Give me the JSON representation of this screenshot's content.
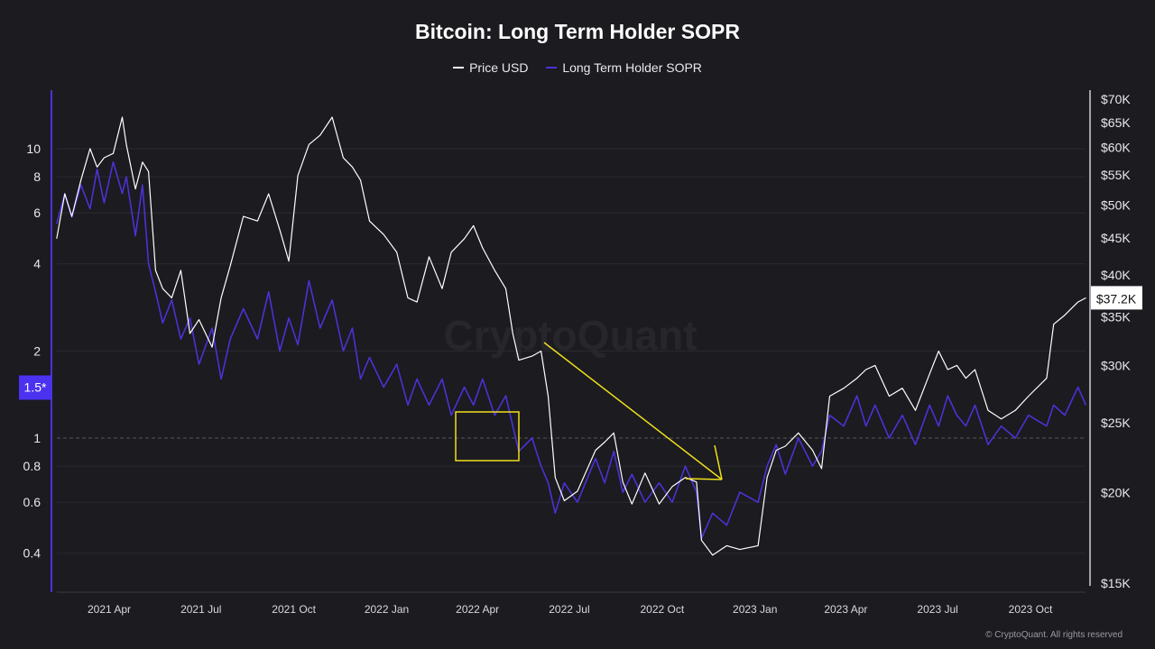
{
  "chart_data": {
    "type": "line",
    "title": "Bitcoin: Long Term Holder SOPR",
    "legend_position": "top",
    "grid": true,
    "x_ticks": [
      "2021 Apr",
      "2021 Jul",
      "2021 Oct",
      "2022 Jan",
      "2022 Apr",
      "2022 Jul",
      "2022 Oct",
      "2023 Jan",
      "2023 Apr",
      "2023 Jul",
      "2023 Oct"
    ],
    "x_tick_dates": [
      "2021-04-01",
      "2021-07-01",
      "2021-10-01",
      "2022-01-01",
      "2022-04-01",
      "2022-07-01",
      "2022-10-01",
      "2023-01-01",
      "2023-04-01",
      "2023-07-01",
      "2023-10-01"
    ],
    "left_axis": {
      "scale": "log",
      "ticks": [
        "10",
        "8",
        "6",
        "4",
        "2",
        "1",
        "0.8",
        "0.6",
        "0.4"
      ],
      "tick_values": [
        10,
        8,
        6,
        4,
        2,
        1,
        0.8,
        0.6,
        0.4
      ],
      "marker_label": "1.5*",
      "marker_value": 1.5,
      "reference_line": 1,
      "range": [
        0.33,
        14
      ]
    },
    "right_axis": {
      "scale": "log",
      "ticks": [
        "$70K",
        "$65K",
        "$60K",
        "$55K",
        "$50K",
        "$45K",
        "$40K",
        "$35K",
        "$30K",
        "$25K",
        "$20K",
        "$15K"
      ],
      "tick_values": [
        70,
        65,
        60,
        55,
        50,
        45,
        40,
        35,
        30,
        25,
        20,
        15
      ],
      "unit": "thousand USD",
      "range": [
        15,
        70
      ],
      "last_value_label": "$37.2K"
    },
    "series": [
      {
        "name": "Price USD",
        "color": "#ffffff",
        "axis": "right",
        "points": [
          [
            "2021-02-08",
            44.9
          ],
          [
            "2021-02-16",
            51.8
          ],
          [
            "2021-02-23",
            48.2
          ],
          [
            "2021-03-04",
            54.1
          ],
          [
            "2021-03-13",
            59.8
          ],
          [
            "2021-03-20",
            56.4
          ],
          [
            "2021-03-27",
            58.1
          ],
          [
            "2021-04-05",
            58.9
          ],
          [
            "2021-04-14",
            66.1
          ],
          [
            "2021-04-18",
            60.6
          ],
          [
            "2021-04-27",
            52.6
          ],
          [
            "2021-05-04",
            57.3
          ],
          [
            "2021-05-10",
            55.6
          ],
          [
            "2021-05-17",
            40.6
          ],
          [
            "2021-05-24",
            38.3
          ],
          [
            "2021-06-02",
            37.2
          ],
          [
            "2021-06-11",
            40.6
          ],
          [
            "2021-06-20",
            33.2
          ],
          [
            "2021-06-29",
            34.7
          ],
          [
            "2021-07-12",
            31.8
          ],
          [
            "2021-07-21",
            37.2
          ],
          [
            "2021-07-30",
            41.2
          ],
          [
            "2021-08-12",
            48.2
          ],
          [
            "2021-08-26",
            47.5
          ],
          [
            "2021-09-06",
            51.8
          ],
          [
            "2021-09-17",
            46.2
          ],
          [
            "2021-09-26",
            41.8
          ],
          [
            "2021-10-05",
            54.9
          ],
          [
            "2021-10-16",
            60.6
          ],
          [
            "2021-10-27",
            62.4
          ],
          [
            "2021-11-08",
            66.1
          ],
          [
            "2021-11-19",
            58.1
          ],
          [
            "2021-11-28",
            56.4
          ],
          [
            "2021-12-06",
            54.1
          ],
          [
            "2021-12-15",
            47.5
          ],
          [
            "2021-12-29",
            45.5
          ],
          [
            "2022-01-11",
            43.0
          ],
          [
            "2022-01-22",
            37.2
          ],
          [
            "2022-01-31",
            36.7
          ],
          [
            "2022-02-12",
            42.4
          ],
          [
            "2022-02-25",
            38.3
          ],
          [
            "2022-03-06",
            43.0
          ],
          [
            "2022-03-19",
            44.9
          ],
          [
            "2022-03-28",
            46.8
          ],
          [
            "2022-04-06",
            43.6
          ],
          [
            "2022-04-18",
            40.6
          ],
          [
            "2022-04-29",
            38.3
          ],
          [
            "2022-05-06",
            33.2
          ],
          [
            "2022-05-12",
            30.5
          ],
          [
            "2022-05-25",
            30.9
          ],
          [
            "2022-06-03",
            31.4
          ],
          [
            "2022-06-10",
            27.2
          ],
          [
            "2022-06-17",
            21.0
          ],
          [
            "2022-06-26",
            19.5
          ],
          [
            "2022-07-09",
            20.1
          ],
          [
            "2022-07-27",
            22.9
          ],
          [
            "2022-08-05",
            23.5
          ],
          [
            "2022-08-14",
            24.2
          ],
          [
            "2022-08-23",
            20.7
          ],
          [
            "2022-09-01",
            19.3
          ],
          [
            "2022-09-14",
            21.3
          ],
          [
            "2022-09-28",
            19.3
          ],
          [
            "2022-10-11",
            20.4
          ],
          [
            "2022-10-24",
            21.0
          ],
          [
            "2022-11-04",
            20.7
          ],
          [
            "2022-11-09",
            17.2
          ],
          [
            "2022-11-20",
            16.4
          ],
          [
            "2022-12-04",
            16.9
          ],
          [
            "2022-12-17",
            16.7
          ],
          [
            "2023-01-04",
            16.9
          ],
          [
            "2023-01-13",
            21.0
          ],
          [
            "2023-01-22",
            22.9
          ],
          [
            "2023-01-31",
            23.2
          ],
          [
            "2023-02-13",
            24.2
          ],
          [
            "2023-02-27",
            22.9
          ],
          [
            "2023-03-08",
            21.6
          ],
          [
            "2023-03-16",
            27.2
          ],
          [
            "2023-03-30",
            27.9
          ],
          [
            "2023-04-12",
            28.8
          ],
          [
            "2023-04-21",
            29.6
          ],
          [
            "2023-04-30",
            30.0
          ],
          [
            "2023-05-14",
            27.2
          ],
          [
            "2023-05-27",
            27.9
          ],
          [
            "2023-06-09",
            26.0
          ],
          [
            "2023-06-23",
            29.2
          ],
          [
            "2023-07-02",
            31.4
          ],
          [
            "2023-07-11",
            29.6
          ],
          [
            "2023-07-20",
            30.0
          ],
          [
            "2023-07-29",
            28.8
          ],
          [
            "2023-08-07",
            29.6
          ],
          [
            "2023-08-20",
            26.0
          ],
          [
            "2023-09-02",
            25.3
          ],
          [
            "2023-09-16",
            26.0
          ],
          [
            "2023-09-29",
            27.2
          ],
          [
            "2023-10-17",
            28.8
          ],
          [
            "2023-10-24",
            34.2
          ],
          [
            "2023-11-04",
            35.2
          ],
          [
            "2023-11-17",
            36.7
          ],
          [
            "2023-11-25",
            37.2
          ]
        ]
      },
      {
        "name": "Long Term Holder SOPR",
        "color": "#4b32d4",
        "axis": "left",
        "points": [
          [
            "2021-02-08",
            5.5
          ],
          [
            "2021-02-16",
            7
          ],
          [
            "2021-02-23",
            5.8
          ],
          [
            "2021-03-04",
            7.5
          ],
          [
            "2021-03-13",
            6.2
          ],
          [
            "2021-03-20",
            8.5
          ],
          [
            "2021-03-27",
            6.5
          ],
          [
            "2021-04-05",
            9
          ],
          [
            "2021-04-14",
            7
          ],
          [
            "2021-04-18",
            8
          ],
          [
            "2021-04-27",
            5
          ],
          [
            "2021-05-04",
            7.5
          ],
          [
            "2021-05-10",
            4
          ],
          [
            "2021-05-17",
            3.2
          ],
          [
            "2021-05-24",
            2.5
          ],
          [
            "2021-06-02",
            3
          ],
          [
            "2021-06-11",
            2.2
          ],
          [
            "2021-06-20",
            2.6
          ],
          [
            "2021-06-29",
            1.8
          ],
          [
            "2021-07-12",
            2.4
          ],
          [
            "2021-07-21",
            1.6
          ],
          [
            "2021-07-30",
            2.2
          ],
          [
            "2021-08-12",
            2.8
          ],
          [
            "2021-08-26",
            2.2
          ],
          [
            "2021-09-06",
            3.2
          ],
          [
            "2021-09-17",
            2.0
          ],
          [
            "2021-09-26",
            2.6
          ],
          [
            "2021-10-05",
            2.1
          ],
          [
            "2021-10-16",
            3.5
          ],
          [
            "2021-10-27",
            2.4
          ],
          [
            "2021-11-08",
            3.0
          ],
          [
            "2021-11-19",
            2.0
          ],
          [
            "2021-11-28",
            2.4
          ],
          [
            "2021-12-06",
            1.6
          ],
          [
            "2021-12-15",
            1.9
          ],
          [
            "2021-12-29",
            1.5
          ],
          [
            "2022-01-11",
            1.8
          ],
          [
            "2022-01-22",
            1.3
          ],
          [
            "2022-01-31",
            1.6
          ],
          [
            "2022-02-12",
            1.3
          ],
          [
            "2022-02-25",
            1.6
          ],
          [
            "2022-03-06",
            1.2
          ],
          [
            "2022-03-19",
            1.5
          ],
          [
            "2022-03-28",
            1.3
          ],
          [
            "2022-04-06",
            1.6
          ],
          [
            "2022-04-18",
            1.2
          ],
          [
            "2022-04-29",
            1.4
          ],
          [
            "2022-05-06",
            1.1
          ],
          [
            "2022-05-12",
            0.9
          ],
          [
            "2022-05-25",
            1.0
          ],
          [
            "2022-06-03",
            0.8
          ],
          [
            "2022-06-10",
            0.7
          ],
          [
            "2022-06-17",
            0.55
          ],
          [
            "2022-06-26",
            0.7
          ],
          [
            "2022-07-09",
            0.6
          ],
          [
            "2022-07-27",
            0.85
          ],
          [
            "2022-08-05",
            0.7
          ],
          [
            "2022-08-14",
            0.9
          ],
          [
            "2022-08-23",
            0.65
          ],
          [
            "2022-09-01",
            0.75
          ],
          [
            "2022-09-14",
            0.6
          ],
          [
            "2022-09-28",
            0.7
          ],
          [
            "2022-10-11",
            0.6
          ],
          [
            "2022-10-24",
            0.8
          ],
          [
            "2022-11-04",
            0.65
          ],
          [
            "2022-11-09",
            0.45
          ],
          [
            "2022-11-20",
            0.55
          ],
          [
            "2022-12-04",
            0.5
          ],
          [
            "2022-12-17",
            0.65
          ],
          [
            "2023-01-04",
            0.6
          ],
          [
            "2023-01-13",
            0.8
          ],
          [
            "2023-01-22",
            0.95
          ],
          [
            "2023-01-31",
            0.75
          ],
          [
            "2023-02-13",
            1.0
          ],
          [
            "2023-02-27",
            0.8
          ],
          [
            "2023-03-08",
            0.9
          ],
          [
            "2023-03-16",
            1.2
          ],
          [
            "2023-03-30",
            1.1
          ],
          [
            "2023-04-12",
            1.4
          ],
          [
            "2023-04-21",
            1.1
          ],
          [
            "2023-04-30",
            1.3
          ],
          [
            "2023-05-14",
            1.0
          ],
          [
            "2023-05-27",
            1.2
          ],
          [
            "2023-06-09",
            0.95
          ],
          [
            "2023-06-23",
            1.3
          ],
          [
            "2023-07-02",
            1.1
          ],
          [
            "2023-07-11",
            1.4
          ],
          [
            "2023-07-20",
            1.2
          ],
          [
            "2023-07-29",
            1.1
          ],
          [
            "2023-08-07",
            1.3
          ],
          [
            "2023-08-20",
            0.95
          ],
          [
            "2023-09-02",
            1.1
          ],
          [
            "2023-09-16",
            1.0
          ],
          [
            "2023-09-29",
            1.2
          ],
          [
            "2023-10-17",
            1.1
          ],
          [
            "2023-10-24",
            1.3
          ],
          [
            "2023-11-04",
            1.2
          ],
          [
            "2023-11-17",
            1.5
          ],
          [
            "2023-11-25",
            1.3
          ]
        ]
      }
    ],
    "annotation_color": "#f2e01a"
  },
  "watermark": "CryptoQuant",
  "copyright": "© CryptoQuant. All rights reserved"
}
